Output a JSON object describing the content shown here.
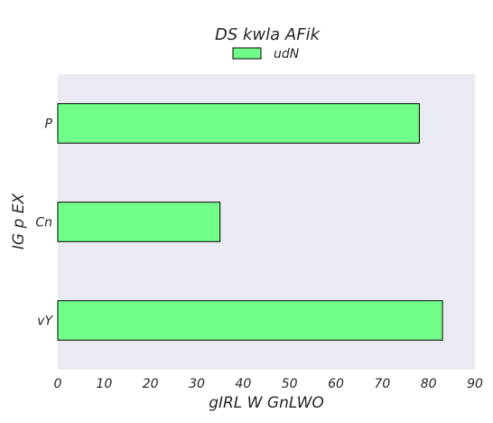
{
  "chart_data": {
    "type": "bar",
    "orientation": "horizontal",
    "title": "DS kwla AFik",
    "xlabel": "gIRL W GnLWO",
    "ylabel": "IG p EX",
    "categories": [
      "P",
      "Cn",
      "vY"
    ],
    "series": [
      {
        "name": "udN",
        "values": [
          78,
          35,
          83
        ],
        "color": "#70ff88"
      }
    ],
    "xlim": [
      0,
      90
    ],
    "xticks": [
      0,
      10,
      20,
      30,
      40,
      50,
      60,
      70,
      80,
      90
    ],
    "grid": false,
    "legend_position": "top-center",
    "plot_background": "#eaeaf2",
    "bar_edge_color": "#000000"
  }
}
